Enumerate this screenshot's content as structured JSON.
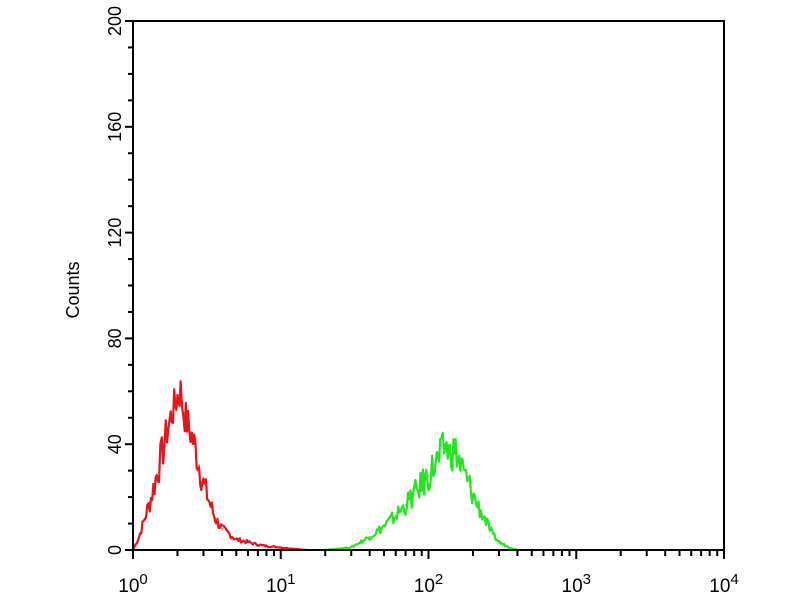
{
  "chart_data": {
    "type": "line",
    "title": "",
    "xlabel": "",
    "ylabel": "Counts",
    "xscale": "log",
    "xlim": [
      1,
      10000
    ],
    "ylim": [
      0,
      200
    ],
    "yticks": [
      0,
      40,
      80,
      120,
      160,
      200
    ],
    "xticks": [
      {
        "base": "10",
        "exp": "0"
      },
      {
        "base": "10",
        "exp": "1"
      },
      {
        "base": "10",
        "exp": "2"
      },
      {
        "base": "10",
        "exp": "3"
      },
      {
        "base": "10",
        "exp": "4"
      }
    ],
    "grid": false,
    "series": [
      {
        "color": "#e8141c",
        "x": [
          1.0,
          1.1,
          1.2,
          1.3,
          1.4,
          1.5,
          1.6,
          1.7,
          1.8,
          1.9,
          2.0,
          2.1,
          2.2,
          2.4,
          2.6,
          2.8,
          3.0,
          3.3,
          3.6,
          4.0,
          4.5,
          5,
          6,
          7,
          8,
          10,
          12,
          15
        ],
        "y": [
          0,
          5,
          12,
          18,
          25,
          32,
          38,
          45,
          50,
          54,
          58,
          60,
          52,
          46,
          40,
          32,
          25,
          18,
          12,
          8,
          6,
          4,
          3,
          2,
          1.5,
          1,
          0.5,
          0
        ]
      },
      {
        "color": "#22e61e",
        "x": [
          20,
          30,
          40,
          50,
          60,
          70,
          80,
          90,
          100,
          110,
          120,
          130,
          140,
          150,
          170,
          190,
          210,
          240,
          270,
          300,
          350,
          400
        ],
        "y": [
          0,
          1,
          5,
          9,
          13,
          17,
          21,
          25,
          28,
          32,
          35,
          40,
          36,
          38,
          30,
          24,
          18,
          12,
          6,
          3,
          1,
          0
        ]
      }
    ]
  }
}
